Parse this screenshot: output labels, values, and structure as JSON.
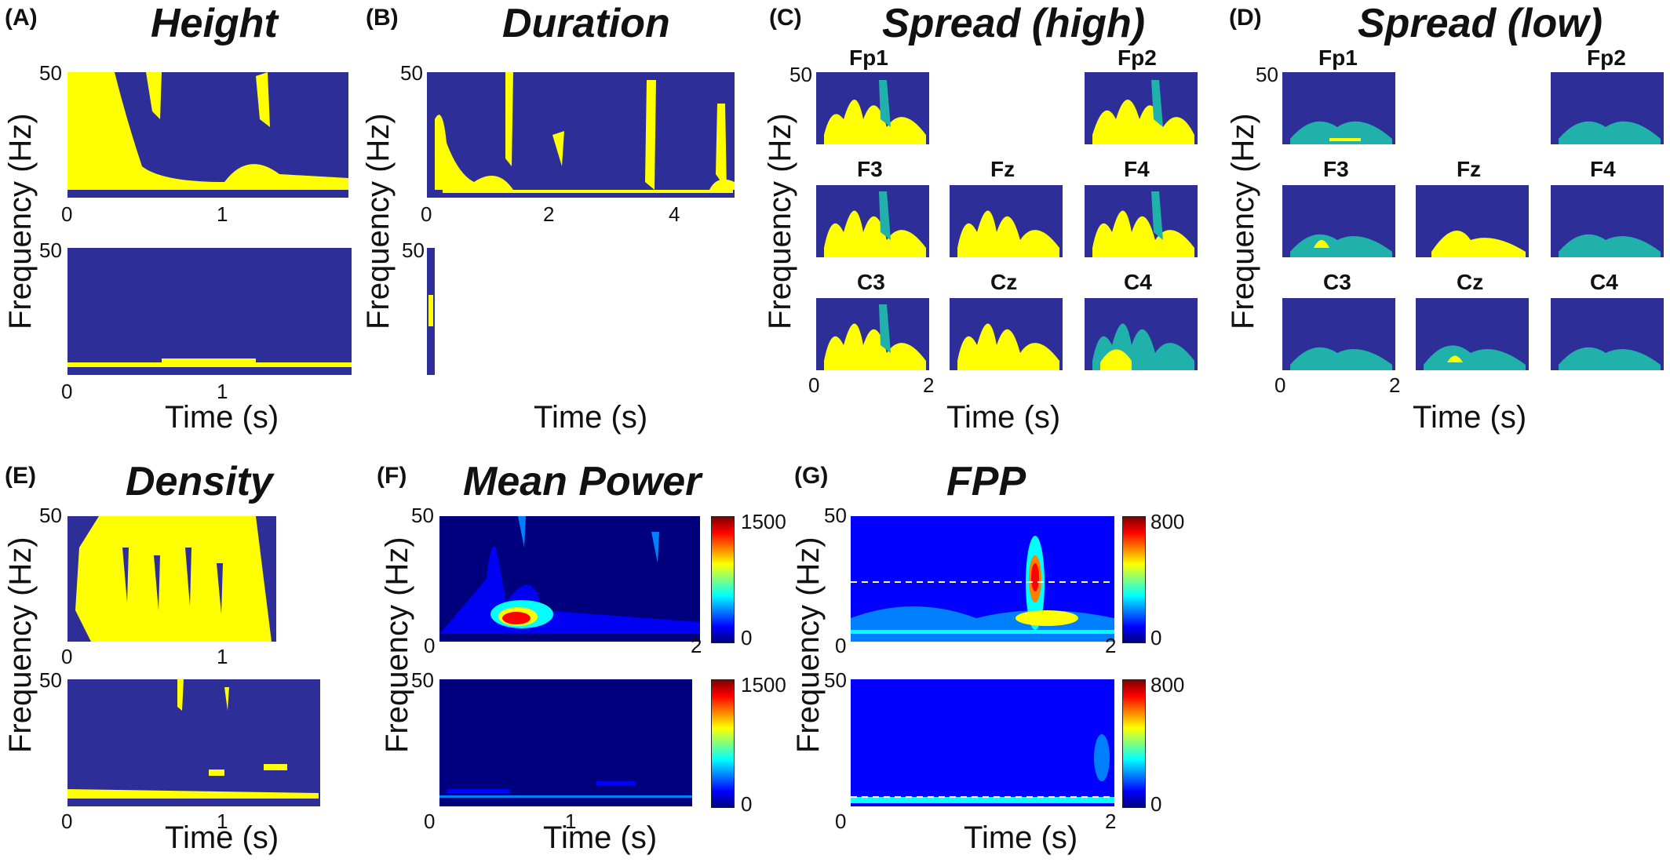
{
  "panels": {
    "A": {
      "letter": "(A)",
      "title": "Height"
    },
    "B": {
      "letter": "(B)",
      "title": "Duration"
    },
    "C": {
      "letter": "(C)",
      "title": "Spread (high)"
    },
    "D": {
      "letter": "(D)",
      "title": "Spread (low)"
    },
    "E": {
      "letter": "(E)",
      "title": "Density"
    },
    "F": {
      "letter": "(F)",
      "title": "Mean Power"
    },
    "G": {
      "letter": "(G)",
      "title": "FPP"
    }
  },
  "axes": {
    "ylabel": "Frequency (Hz)",
    "xlabel": "Time (s)",
    "y_top": "50",
    "y_zero": "0",
    "x_one": "1",
    "x_two": "2",
    "x_four": "4"
  },
  "electrodes": {
    "fp1": "Fp1",
    "fp2": "Fp2",
    "f3": "F3",
    "fz": "Fz",
    "f4": "F4",
    "c3": "C3",
    "cz": "Cz",
    "c4": "C4"
  },
  "colorbars": {
    "mean_power_max": "1500",
    "fpp_max": "800",
    "min": "0"
  },
  "colors": {
    "background_plot": "#2e2e99",
    "mask_high": "#ffff00",
    "mask_low": "#20b2aa"
  }
}
